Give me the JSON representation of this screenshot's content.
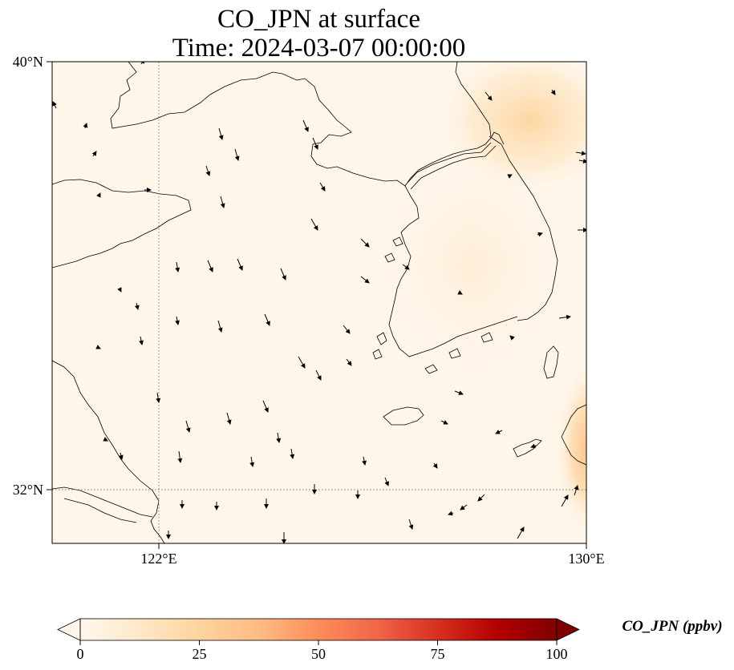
{
  "title": {
    "line1": "CO_JPN at surface",
    "line2": "Time: 2024-03-07 00:00:00"
  },
  "map": {
    "lon_range": [
      121,
      130
    ],
    "lat_range": [
      31,
      40
    ],
    "lat_labels": [
      {
        "lat": 40,
        "text": "40°N"
      },
      {
        "lat": 32,
        "text": "32°N"
      }
    ],
    "lon_labels": [
      {
        "lon": 122,
        "text": "122°E"
      },
      {
        "lon": 130,
        "text": "130°E"
      }
    ],
    "gridlines": {
      "lat": [
        32
      ],
      "lon": [
        122
      ],
      "style": "dotted"
    },
    "field_variable": "CO_JPN",
    "high_concentration_areas": [
      {
        "lon": 128.8,
        "lat": 39.4,
        "level": 25
      },
      {
        "lon": 130.0,
        "lat": 33.0,
        "level": 30
      }
    ]
  },
  "colorbar": {
    "label": "CO_JPN (ppbv)",
    "min": 0,
    "max": 100,
    "ticks": [
      0,
      25,
      50,
      75,
      100
    ],
    "extend": "both",
    "colormap": "OrRd",
    "colors": [
      "#fff7ec",
      "#fee8c8",
      "#fdd49e",
      "#fdbb84",
      "#fc8d59",
      "#ef6548",
      "#d7301f",
      "#b30000",
      "#7f0000"
    ]
  }
}
